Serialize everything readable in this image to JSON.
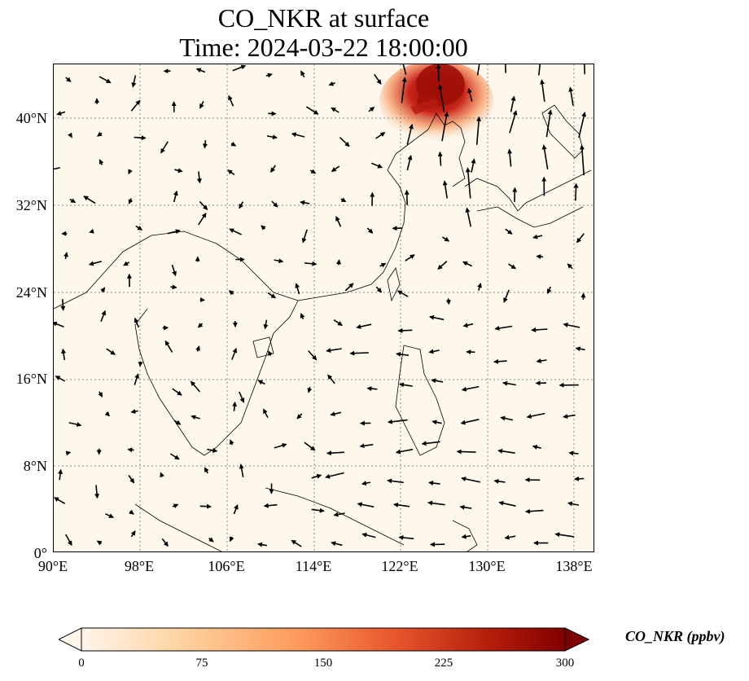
{
  "title": {
    "line1": "CO_NKR at surface",
    "line2": "Time: 2024-03-22 18:00:00"
  },
  "axes": {
    "lat_labels": [
      "0°",
      "8°N",
      "16°N",
      "24°N",
      "32°N",
      "40°N"
    ],
    "lon_labels": [
      "90°E",
      "98°E",
      "106°E",
      "114°E",
      "122°E",
      "130°E",
      "138°E"
    ],
    "lat_range": [
      0,
      45
    ],
    "lon_range": [
      90,
      140
    ],
    "grid": "dotted"
  },
  "colorbar": {
    "label": "CO_NKR (ppbv)",
    "ticks": [
      "0",
      "75",
      "150",
      "225",
      "300"
    ],
    "range": [
      0,
      300
    ],
    "extend": "both",
    "colors": [
      "#fff5eb",
      "#fdd4a2",
      "#fd9a5a",
      "#e8552c",
      "#b31c0a",
      "#7f0000"
    ]
  },
  "map_content": {
    "background_color": "#fef7ec",
    "plume_region": "Northeast China / Bohai coast",
    "plume_color": "#a01008",
    "coastline_color": "#000000",
    "vector_field": "surface wind arrows"
  }
}
